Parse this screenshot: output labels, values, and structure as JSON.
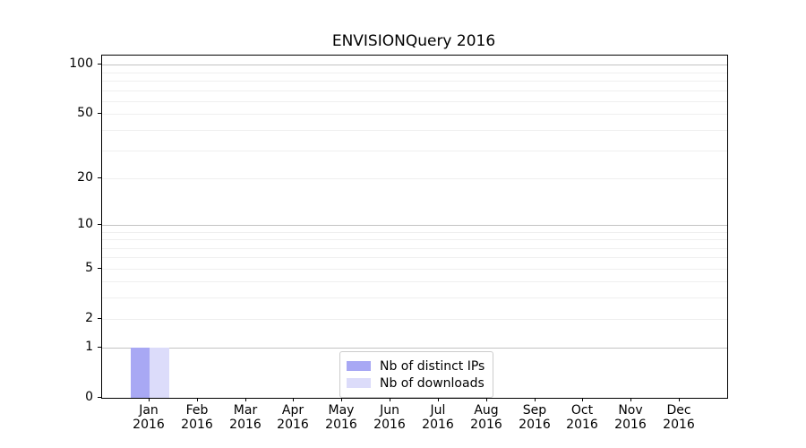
{
  "title": "ENVISIONQuery 2016",
  "chart_data": {
    "type": "bar",
    "title": "ENVISIONQuery 2016",
    "xlabel": "",
    "ylabel": "",
    "x_tick_labels": [
      [
        "Jan",
        "2016"
      ],
      [
        "Feb",
        "2016"
      ],
      [
        "Mar",
        "2016"
      ],
      [
        "Apr",
        "2016"
      ],
      [
        "May",
        "2016"
      ],
      [
        "Jun",
        "2016"
      ],
      [
        "Jul",
        "2016"
      ],
      [
        "Aug",
        "2016"
      ],
      [
        "Sep",
        "2016"
      ],
      [
        "Oct",
        "2016"
      ],
      [
        "Nov",
        "2016"
      ],
      [
        "Dec",
        "2016"
      ]
    ],
    "series": [
      {
        "name": "Nb of distinct IPs",
        "color": "#a8a8f4",
        "values": [
          1,
          0,
          0,
          0,
          0,
          0,
          0,
          0,
          0,
          0,
          0,
          0
        ]
      },
      {
        "name": "Nb of downloads",
        "color": "#dcdcfa",
        "values": [
          1,
          0,
          0,
          0,
          0,
          0,
          0,
          0,
          0,
          0,
          0,
          0
        ]
      }
    ],
    "yscale": "log1p",
    "ylim": [
      0,
      114
    ],
    "y_tick_values": [
      0,
      1,
      2,
      5,
      10,
      20,
      50,
      100
    ],
    "y_major_gridlines": [
      1,
      10,
      100
    ],
    "y_minor_gridlines": [
      2,
      3,
      4,
      5,
      6,
      7,
      8,
      9,
      20,
      30,
      40,
      50,
      60,
      70,
      80,
      90
    ],
    "grid": true,
    "legend_position": "lower center"
  },
  "colors": {
    "background": "#ffffff",
    "axis": "#000000",
    "major_grid": "#c3c3c3",
    "minor_grid": "#efefef",
    "legend_border": "#cccccc",
    "bar_distinct_ips": "#a8a8f4",
    "bar_downloads": "#dcdcfa"
  }
}
